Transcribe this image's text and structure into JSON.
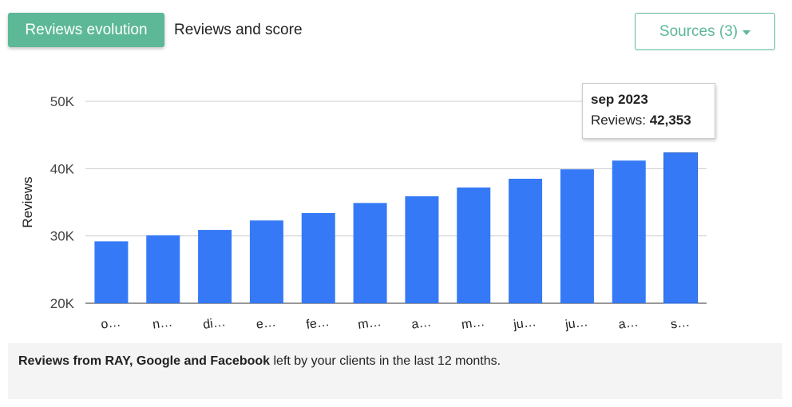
{
  "tabs": {
    "active_label": "Reviews evolution",
    "inactive_label": "Reviews and score"
  },
  "sources_button": {
    "label": "Sources (3)"
  },
  "tooltip": {
    "title": "sep 2023",
    "series_label": "Reviews:",
    "value": "42,353"
  },
  "caption": {
    "bold": "Reviews from RAY, Google and Facebook",
    "rest": " left by your clients in the last 12 months."
  },
  "colors": {
    "accent": "#5cb896",
    "bar": "#3579f6"
  },
  "chart_data": {
    "type": "bar",
    "title": "",
    "xlabel": "",
    "ylabel": "Reviews",
    "ylim": [
      20000,
      50000
    ],
    "yticks": [
      20000,
      30000,
      40000,
      50000
    ],
    "ytick_labels": [
      "20K",
      "30K",
      "40K",
      "50K"
    ],
    "categories": [
      "o…",
      "n…",
      "di…",
      "e…",
      "fe…",
      "m…",
      "a…",
      "m…",
      "ju…",
      "ju…",
      "a…",
      "s…"
    ],
    "values": [
      29200,
      30100,
      30900,
      32300,
      33400,
      34900,
      35900,
      37200,
      38500,
      39900,
      41200,
      42353
    ],
    "grid": true,
    "highlighted_index": 11
  }
}
